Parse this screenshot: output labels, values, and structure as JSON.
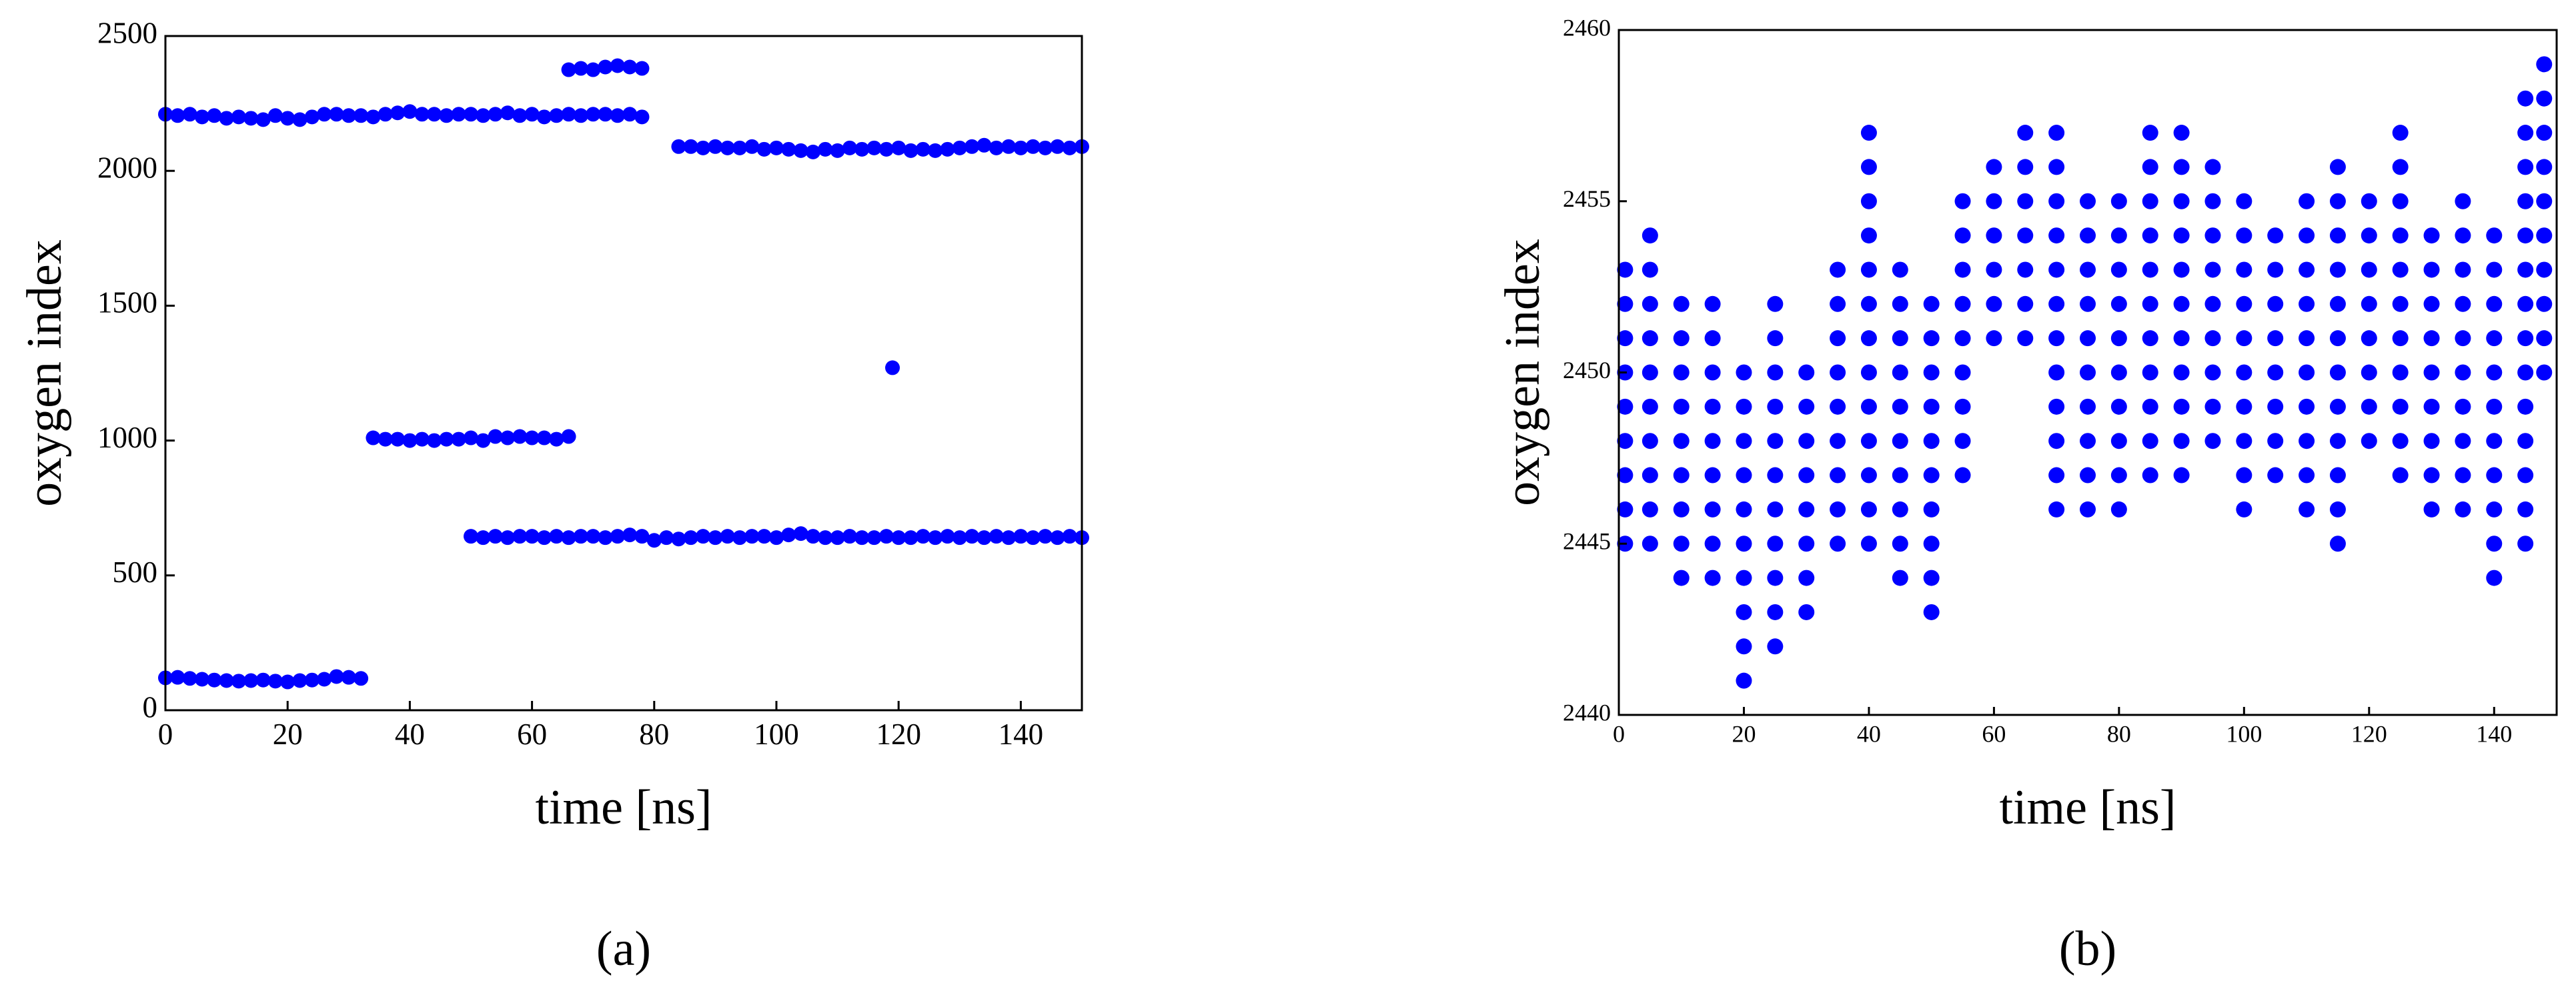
{
  "chart_data": [
    {
      "type": "scatter",
      "xlabel": "time [ns]",
      "ylabel": "oxygen index",
      "caption": "(a)",
      "xlim": [
        0,
        150
      ],
      "xticks": [
        0,
        20,
        40,
        60,
        80,
        100,
        120,
        140
      ],
      "ylim": [
        0,
        2500
      ],
      "yticks": [
        0,
        500,
        1000,
        1500,
        2000,
        2500
      ],
      "series": [
        {
          "color": "#0000ff",
          "x": [
            0,
            2,
            4,
            6,
            8,
            10,
            12,
            14,
            16,
            18,
            20,
            22,
            24,
            26,
            28,
            30,
            32,
            0,
            2,
            4,
            6,
            8,
            10,
            12,
            14,
            16,
            18,
            20,
            22,
            24,
            26,
            28,
            30,
            32,
            34,
            36,
            38,
            40,
            42,
            44,
            46,
            48,
            50,
            52,
            54,
            56,
            58,
            60,
            62,
            64,
            66,
            68,
            70,
            72,
            74,
            76,
            78,
            34,
            36,
            38,
            40,
            42,
            44,
            46,
            48,
            50,
            52,
            54,
            56,
            58,
            60,
            62,
            64,
            66,
            66,
            68,
            70,
            72,
            74,
            76,
            78,
            50,
            52,
            54,
            56,
            58,
            60,
            62,
            64,
            66,
            68,
            70,
            72,
            74,
            76,
            78,
            80,
            82,
            84,
            86,
            88,
            90,
            92,
            94,
            96,
            98,
            100,
            102,
            104,
            106,
            108,
            110,
            112,
            114,
            116,
            118,
            120,
            122,
            124,
            126,
            128,
            130,
            132,
            134,
            136,
            138,
            140,
            142,
            144,
            146,
            148,
            150,
            84,
            86,
            88,
            90,
            92,
            94,
            96,
            98,
            100,
            102,
            104,
            106,
            108,
            110,
            112,
            114,
            116,
            118,
            120,
            122,
            124,
            126,
            128,
            130,
            132,
            134,
            136,
            138,
            140,
            142,
            144,
            146,
            148,
            150,
            119
          ],
          "values": [
            120,
            122,
            118,
            115,
            112,
            110,
            108,
            110,
            112,
            108,
            105,
            110,
            112,
            115,
            125,
            122,
            118,
            2210,
            2205,
            2210,
            2200,
            2205,
            2195,
            2200,
            2195,
            2190,
            2205,
            2195,
            2190,
            2200,
            2210,
            2210,
            2205,
            2205,
            2200,
            2210,
            2215,
            2220,
            2210,
            2210,
            2205,
            2210,
            2210,
            2205,
            2210,
            2215,
            2205,
            2210,
            2200,
            2205,
            2210,
            2205,
            2210,
            2210,
            2205,
            2210,
            2200,
            1010,
            1005,
            1005,
            1000,
            1005,
            1000,
            1005,
            1005,
            1010,
            1000,
            1015,
            1010,
            1015,
            1010,
            1010,
            1005,
            1015,
            2375,
            2380,
            2375,
            2385,
            2390,
            2385,
            2380,
            645,
            640,
            645,
            640,
            645,
            645,
            640,
            645,
            640,
            645,
            645,
            640,
            645,
            650,
            645,
            630,
            640,
            635,
            640,
            645,
            640,
            645,
            640,
            645,
            645,
            640,
            650,
            655,
            645,
            640,
            640,
            645,
            640,
            640,
            645,
            640,
            640,
            645,
            640,
            645,
            640,
            645,
            640,
            645,
            640,
            645,
            640,
            645,
            640,
            645,
            640,
            2090,
            2090,
            2085,
            2090,
            2085,
            2085,
            2090,
            2080,
            2085,
            2080,
            2075,
            2070,
            2080,
            2075,
            2085,
            2080,
            2085,
            2080,
            2085,
            2075,
            2080,
            2075,
            2080,
            2085,
            2090,
            2095,
            2085,
            2090,
            2085,
            2090,
            2085,
            2090,
            2085,
            2090,
            1270
          ]
        }
      ]
    },
    {
      "type": "scatter",
      "xlabel": "time [ns]",
      "ylabel": "oxygen index",
      "caption": "(b)",
      "xlim": [
        0,
        150
      ],
      "xticks": [
        0,
        20,
        40,
        60,
        80,
        100,
        120,
        140
      ],
      "ylim": [
        2440,
        2460
      ],
      "yticks": [
        2440,
        2445,
        2450,
        2455,
        2460
      ],
      "series": [
        {
          "color": "#0000ff",
          "x": [
            1,
            1,
            1,
            1,
            1,
            1,
            1,
            1,
            1,
            5,
            5,
            5,
            5,
            5,
            5,
            5,
            5,
            5,
            5,
            10,
            10,
            10,
            10,
            10,
            10,
            10,
            10,
            10,
            15,
            15,
            15,
            15,
            15,
            15,
            15,
            15,
            15,
            20,
            20,
            20,
            20,
            20,
            20,
            20,
            20,
            20,
            20,
            25,
            25,
            25,
            25,
            25,
            25,
            25,
            25,
            25,
            25,
            25,
            30,
            30,
            30,
            30,
            30,
            30,
            30,
            30,
            35,
            35,
            35,
            35,
            35,
            35,
            35,
            35,
            35,
            40,
            40,
            40,
            40,
            40,
            40,
            40,
            40,
            40,
            40,
            40,
            40,
            40,
            45,
            45,
            45,
            45,
            45,
            45,
            45,
            45,
            45,
            45,
            50,
            50,
            50,
            50,
            50,
            50,
            50,
            50,
            50,
            50,
            55,
            55,
            55,
            55,
            55,
            55,
            55,
            55,
            55,
            60,
            60,
            60,
            60,
            60,
            60,
            65,
            65,
            65,
            65,
            65,
            65,
            65,
            70,
            70,
            70,
            70,
            70,
            70,
            70,
            70,
            70,
            70,
            70,
            70,
            75,
            75,
            75,
            75,
            75,
            75,
            75,
            75,
            75,
            75,
            80,
            80,
            80,
            80,
            80,
            80,
            80,
            80,
            80,
            80,
            85,
            85,
            85,
            85,
            85,
            85,
            85,
            85,
            85,
            85,
            85,
            90,
            90,
            90,
            90,
            90,
            90,
            90,
            90,
            90,
            90,
            90,
            95,
            95,
            95,
            95,
            95,
            95,
            95,
            95,
            95,
            100,
            100,
            100,
            100,
            100,
            100,
            100,
            100,
            100,
            100,
            105,
            105,
            105,
            105,
            105,
            105,
            105,
            105,
            110,
            110,
            110,
            110,
            110,
            110,
            110,
            110,
            110,
            110,
            115,
            115,
            115,
            115,
            115,
            115,
            115,
            115,
            115,
            115,
            115,
            115,
            120,
            120,
            120,
            120,
            120,
            120,
            120,
            120,
            125,
            125,
            125,
            125,
            125,
            125,
            125,
            125,
            125,
            125,
            125,
            130,
            130,
            130,
            130,
            130,
            130,
            130,
            130,
            130,
            135,
            135,
            135,
            135,
            135,
            135,
            135,
            135,
            135,
            135,
            140,
            140,
            140,
            140,
            140,
            140,
            140,
            140,
            140,
            140,
            140,
            145,
            145,
            145,
            145,
            145,
            145,
            145,
            145,
            145,
            145,
            145,
            145,
            145,
            145,
            148,
            148,
            148,
            148,
            148,
            148,
            148,
            148,
            148,
            148
          ],
          "values": [
            2445,
            2446,
            2447,
            2448,
            2449,
            2450,
            2451,
            2452,
            2453,
            2445,
            2446,
            2447,
            2448,
            2449,
            2450,
            2451,
            2452,
            2453,
            2454,
            2444,
            2445,
            2446,
            2447,
            2448,
            2449,
            2450,
            2451,
            2452,
            2444,
            2445,
            2446,
            2447,
            2448,
            2449,
            2450,
            2451,
            2452,
            2441,
            2442,
            2443,
            2444,
            2445,
            2446,
            2447,
            2448,
            2449,
            2450,
            2442,
            2443,
            2444,
            2445,
            2446,
            2447,
            2448,
            2449,
            2450,
            2451,
            2452,
            2443,
            2444,
            2445,
            2446,
            2447,
            2448,
            2449,
            2450,
            2445,
            2446,
            2447,
            2448,
            2449,
            2450,
            2451,
            2452,
            2453,
            2445,
            2446,
            2447,
            2448,
            2449,
            2450,
            2451,
            2452,
            2453,
            2454,
            2455,
            2456,
            2457,
            2444,
            2445,
            2446,
            2447,
            2448,
            2449,
            2450,
            2451,
            2452,
            2453,
            2443,
            2444,
            2445,
            2446,
            2447,
            2448,
            2449,
            2450,
            2451,
            2452,
            2447,
            2448,
            2449,
            2450,
            2451,
            2452,
            2453,
            2454,
            2455,
            2451,
            2452,
            2453,
            2454,
            2455,
            2456,
            2451,
            2452,
            2453,
            2454,
            2455,
            2456,
            2457,
            2446,
            2447,
            2448,
            2449,
            2450,
            2451,
            2452,
            2453,
            2454,
            2455,
            2456,
            2457,
            2446,
            2447,
            2448,
            2449,
            2450,
            2451,
            2452,
            2453,
            2454,
            2455,
            2446,
            2447,
            2448,
            2449,
            2450,
            2451,
            2452,
            2453,
            2454,
            2455,
            2447,
            2448,
            2449,
            2450,
            2451,
            2452,
            2453,
            2454,
            2455,
            2456,
            2457,
            2447,
            2448,
            2449,
            2450,
            2451,
            2452,
            2453,
            2454,
            2455,
            2456,
            2457,
            2448,
            2449,
            2450,
            2451,
            2452,
            2453,
            2454,
            2455,
            2456,
            2446,
            2447,
            2448,
            2449,
            2450,
            2451,
            2452,
            2453,
            2454,
            2455,
            2447,
            2448,
            2449,
            2450,
            2451,
            2452,
            2453,
            2454,
            2446,
            2447,
            2448,
            2449,
            2450,
            2451,
            2452,
            2453,
            2454,
            2455,
            2445,
            2446,
            2447,
            2448,
            2449,
            2450,
            2451,
            2452,
            2453,
            2454,
            2455,
            2456,
            2448,
            2449,
            2450,
            2451,
            2452,
            2453,
            2454,
            2455,
            2447,
            2448,
            2449,
            2450,
            2451,
            2452,
            2453,
            2454,
            2455,
            2456,
            2457,
            2446,
            2447,
            2448,
            2449,
            2450,
            2451,
            2452,
            2453,
            2454,
            2446,
            2447,
            2448,
            2449,
            2450,
            2451,
            2452,
            2453,
            2454,
            2455,
            2444,
            2445,
            2446,
            2447,
            2448,
            2449,
            2450,
            2451,
            2452,
            2453,
            2454,
            2445,
            2446,
            2447,
            2448,
            2449,
            2450,
            2451,
            2452,
            2453,
            2454,
            2455,
            2456,
            2457,
            2458,
            2450,
            2451,
            2452,
            2453,
            2454,
            2455,
            2456,
            2457,
            2458,
            2459
          ]
        }
      ]
    }
  ]
}
